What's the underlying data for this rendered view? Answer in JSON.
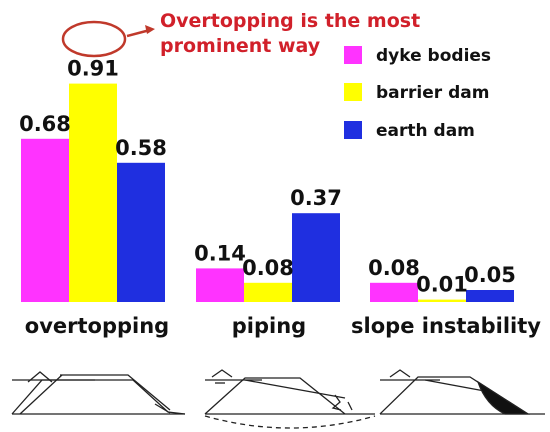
{
  "chart_data": {
    "type": "bar",
    "categories": [
      "overtopping",
      "piping",
      "slope instability"
    ],
    "series": [
      {
        "name": "dyke bodies",
        "color": "#ff33ff",
        "values": [
          0.68,
          0.14,
          0.08
        ]
      },
      {
        "name": "barrier dam",
        "color": "#ffff00",
        "values": [
          0.91,
          0.08,
          0.01
        ]
      },
      {
        "name": "earth dam",
        "color": "#1f2fe0",
        "values": [
          0.58,
          0.37,
          0.05
        ]
      }
    ],
    "value_labels": [
      [
        "0.68",
        "0.14",
        "0.08"
      ],
      [
        "0.91",
        "0.08",
        "0.01"
      ],
      [
        "0.58",
        "0.37",
        "0.05"
      ]
    ],
    "ylim": [
      0,
      1
    ],
    "grid": false,
    "legend_position": "top-right",
    "annotation": {
      "lines": [
        "Overtopping is the most",
        "prominent way"
      ],
      "color": "#d1202a",
      "target_category": "overtopping",
      "target_series": "barrier dam"
    }
  },
  "diagram_icons": [
    "overtopping-dam-icon",
    "piping-dam-icon",
    "slope-instability-dam-icon"
  ]
}
